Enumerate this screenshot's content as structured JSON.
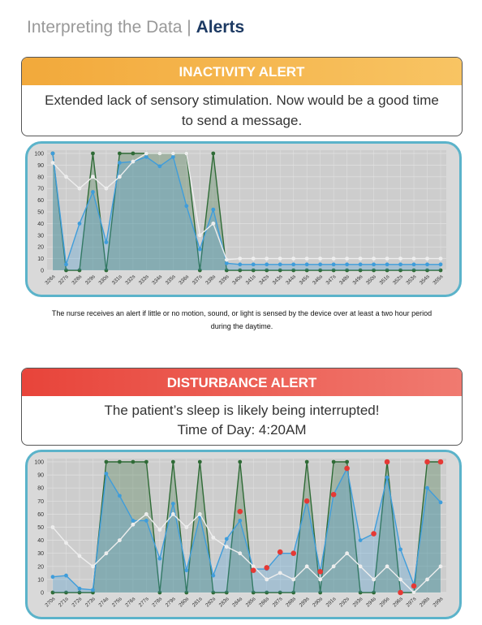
{
  "header": {
    "prefix": "Interpreting the Data",
    "separator": "|",
    "emphasis": "Alerts"
  },
  "alerts": [
    {
      "title": "INACTIVITY ALERT",
      "message": "Extended lack of sensory stimulation. Now would be a good time to send a message."
    },
    {
      "title": "DISTURBANCE ALERT",
      "message": "The patient’s sleep is likely being interrupted!",
      "detail": "Time of Day: 4:20AM"
    }
  ],
  "caption": "The nurse receives an alert if little or no motion, sound, or light is sensed by the device over at least a two hour period during the daytime.",
  "chart_data": [
    {
      "type": "line",
      "categories": [
        "326s",
        "327s",
        "328s",
        "329s",
        "330s",
        "331s",
        "332s",
        "333s",
        "334s",
        "335s",
        "336s",
        "337s",
        "338s",
        "339s",
        "340s",
        "341s",
        "342s",
        "343s",
        "344s",
        "345s",
        "346s",
        "347s",
        "348s",
        "349s",
        "350s",
        "351s",
        "352s",
        "353s",
        "354s",
        "355s"
      ],
      "ylim": [
        0,
        100
      ],
      "yticks": [
        0,
        10,
        20,
        30,
        40,
        50,
        60,
        70,
        80,
        90,
        100
      ],
      "grid": true,
      "series": [
        {
          "color": "#2f6b36",
          "kind": "area",
          "values": [
            100,
            0,
            0,
            100,
            0,
            100,
            100,
            100,
            100,
            100,
            100,
            0,
            100,
            0,
            0,
            0,
            0,
            0,
            0,
            0,
            0,
            0,
            0,
            0,
            0,
            0,
            0,
            0,
            0,
            0
          ]
        },
        {
          "color": "#3f9ddb",
          "kind": "area",
          "values": [
            100,
            5,
            40,
            67,
            24,
            92,
            93,
            97,
            89,
            97,
            55,
            18,
            52,
            6,
            5,
            5,
            5,
            5,
            5,
            5,
            5,
            5,
            5,
            5,
            5,
            5,
            5,
            5,
            5,
            5
          ]
        },
        {
          "color": "#eeeeee",
          "kind": "line",
          "values": [
            92,
            80,
            70,
            80,
            70,
            80,
            93,
            100,
            100,
            100,
            100,
            30,
            40,
            9,
            10,
            10,
            10,
            10,
            10,
            10,
            10,
            10,
            10,
            10,
            10,
            10,
            10,
            10,
            10,
            10
          ]
        }
      ]
    },
    {
      "type": "line",
      "categories": [
        "270s",
        "271s",
        "272s",
        "273s",
        "274s",
        "275s",
        "276s",
        "277s",
        "278s",
        "279s",
        "280s",
        "281s",
        "282s",
        "283s",
        "284s",
        "285s",
        "286s",
        "287s",
        "288s",
        "289s",
        "290s",
        "291s",
        "292s",
        "293s",
        "294s",
        "295s",
        "296s",
        "297s",
        "298s",
        "299s"
      ],
      "ylim": [
        0,
        100
      ],
      "yticks": [
        0,
        10,
        20,
        30,
        40,
        50,
        60,
        70,
        80,
        90,
        100
      ],
      "grid": true,
      "series": [
        {
          "color": "#2f6b36",
          "kind": "area",
          "values": [
            0,
            0,
            0,
            0,
            100,
            100,
            100,
            100,
            0,
            100,
            0,
            100,
            0,
            0,
            100,
            0,
            0,
            0,
            0,
            100,
            0,
            100,
            100,
            0,
            0,
            100,
            0,
            0,
            100,
            100
          ]
        },
        {
          "color": "#3f9ddb",
          "kind": "area",
          "values": [
            12,
            13,
            3,
            2,
            91,
            74,
            55,
            55,
            26,
            68,
            17,
            58,
            13,
            41,
            55,
            18,
            18,
            30,
            30,
            70,
            16,
            75,
            95,
            40,
            45,
            88,
            33,
            6,
            80,
            69
          ]
        },
        {
          "color": "#eeeeee",
          "kind": "line",
          "values": [
            50,
            38,
            28,
            20,
            30,
            40,
            52,
            60,
            48,
            60,
            50,
            60,
            42,
            35,
            30,
            20,
            10,
            15,
            10,
            20,
            10,
            20,
            30,
            20,
            10,
            20,
            10,
            0,
            10,
            20
          ]
        },
        {
          "color": "#e53935",
          "kind": "points",
          "values": [
            null,
            null,
            null,
            null,
            null,
            null,
            null,
            null,
            null,
            null,
            null,
            null,
            null,
            null,
            62,
            17,
            19,
            31,
            30,
            70,
            16,
            75,
            95,
            null,
            45,
            100,
            0,
            5,
            100,
            100
          ]
        }
      ]
    }
  ]
}
